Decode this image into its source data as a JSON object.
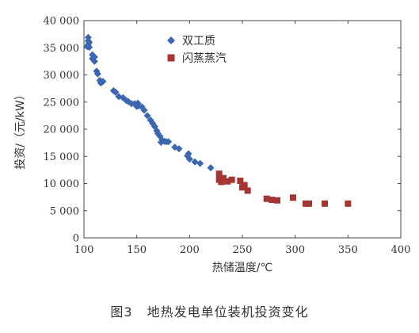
{
  "figure": {
    "caption_number": "图3",
    "caption_title": "地热发电单位装机投资变化"
  },
  "chart_data": {
    "type": "scatter",
    "xlabel": "热储温度/℃",
    "ylabel": "投资/（元/kW）",
    "xlim": [
      100,
      400
    ],
    "ylim": [
      0,
      40000
    ],
    "x_ticks": [
      100,
      150,
      200,
      250,
      300,
      350,
      400
    ],
    "y_ticks": [
      0,
      5000,
      10000,
      15000,
      20000,
      25000,
      30000,
      35000,
      40000
    ],
    "y_tick_labels": [
      "0",
      "5 000",
      "10 000",
      "15 000",
      "20 000",
      "25 000",
      "30 000",
      "35 000",
      "40 000"
    ],
    "grid": false,
    "legend_position": "top-right",
    "series": [
      {
        "name": "双工质",
        "marker": "diamond",
        "color": "#3c66b0",
        "points": [
          [
            103,
            35200
          ],
          [
            104,
            36300
          ],
          [
            104,
            35600
          ],
          [
            104,
            36900
          ],
          [
            105,
            35100
          ],
          [
            105,
            36000
          ],
          [
            108,
            33700
          ],
          [
            108,
            33000
          ],
          [
            110,
            33300
          ],
          [
            110,
            32500
          ],
          [
            112,
            30700
          ],
          [
            113,
            30200
          ],
          [
            115,
            29000
          ],
          [
            116,
            28500
          ],
          [
            118,
            28800
          ],
          [
            128,
            27100
          ],
          [
            130,
            26800
          ],
          [
            133,
            26000
          ],
          [
            137,
            25800
          ],
          [
            140,
            25300
          ],
          [
            142,
            25100
          ],
          [
            145,
            24700
          ],
          [
            148,
            24700
          ],
          [
            150,
            24200
          ],
          [
            151,
            24800
          ],
          [
            152,
            24300
          ],
          [
            155,
            24100
          ],
          [
            157,
            23500
          ],
          [
            160,
            22500
          ],
          [
            163,
            21700
          ],
          [
            165,
            21100
          ],
          [
            167,
            20500
          ],
          [
            169,
            19700
          ],
          [
            170,
            19200
          ],
          [
            172,
            18700
          ],
          [
            173,
            17600
          ],
          [
            174,
            18000
          ],
          [
            176,
            17800
          ],
          [
            178,
            17700
          ],
          [
            180,
            17700
          ],
          [
            186,
            16700
          ],
          [
            190,
            16400
          ],
          [
            198,
            15100
          ],
          [
            199,
            15500
          ],
          [
            200,
            14500
          ],
          [
            205,
            14000
          ],
          [
            210,
            13700
          ],
          [
            220,
            12900
          ]
        ]
      },
      {
        "name": "闪蒸蒸汽",
        "marker": "square",
        "color": "#a43533",
        "points": [
          [
            228,
            11800
          ],
          [
            228,
            10700
          ],
          [
            230,
            10300
          ],
          [
            232,
            11000
          ],
          [
            236,
            10400
          ],
          [
            240,
            10700
          ],
          [
            248,
            10500
          ],
          [
            250,
            9300
          ],
          [
            252,
            9700
          ],
          [
            255,
            8700
          ],
          [
            273,
            7200
          ],
          [
            278,
            7000
          ],
          [
            283,
            6900
          ],
          [
            298,
            7400
          ],
          [
            310,
            6300
          ],
          [
            313,
            6300
          ],
          [
            328,
            6300
          ],
          [
            350,
            6300
          ]
        ]
      }
    ]
  }
}
